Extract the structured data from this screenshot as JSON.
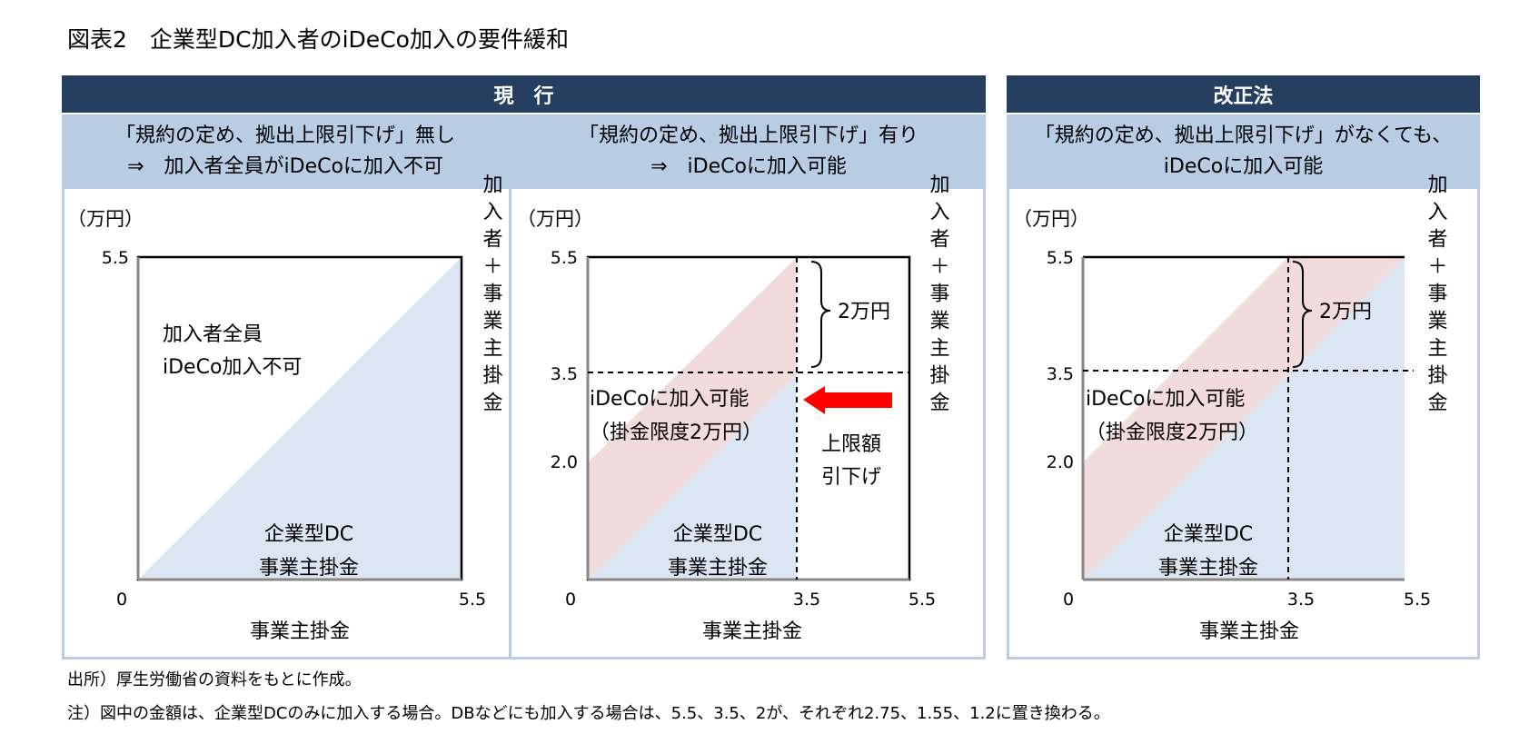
{
  "figure": {
    "title": "図表2　企業型DC加入者のiDeCo加入の要件緩和"
  },
  "headers": {
    "current": "現　行",
    "revised": "改正法"
  },
  "panels": [
    {
      "subtitle": [
        "「規約の定め、拠出上限引下げ」無し",
        "⇒　加入者全員がiDeCoに加入不可"
      ],
      "unit": "（万円）",
      "y_ticks": [
        "5.5"
      ],
      "x_ticks": [
        "0",
        "5.5"
      ],
      "x_label": "事業主掛金",
      "side_label": "加入者＋事業主掛金",
      "area_text": [
        "加入者全員",
        "iDeCo加入不可"
      ],
      "dc_text": [
        "企業型DC",
        "事業主掛金"
      ]
    },
    {
      "subtitle": [
        "「規約の定め、拠出上限引下げ」有り",
        "⇒　iDeCoに加入可能"
      ],
      "unit": "（万円）",
      "y_ticks": [
        "5.5",
        "3.5",
        "2.0"
      ],
      "x_ticks": [
        "0",
        "3.5",
        "5.5"
      ],
      "x_label": "事業主掛金",
      "side_label": "加入者＋事業主掛金",
      "ideco_text": [
        "iDeCoに加入可能",
        "（掛金限度2万円）"
      ],
      "brace_text": "2万円",
      "arrow_text": [
        "上限額",
        "引下げ"
      ],
      "dc_text": [
        "企業型DC",
        "事業主掛金"
      ]
    },
    {
      "subtitle": [
        "「規約の定め、拠出上限引下げ」がなくても、",
        "iDeCoに加入可能"
      ],
      "unit": "（万円）",
      "y_ticks": [
        "5.5",
        "3.5",
        "2.0"
      ],
      "x_ticks": [
        "0",
        "3.5",
        "5.5"
      ],
      "x_label": "事業主掛金",
      "side_label": "加入者＋事業主掛金",
      "ideco_text": [
        "iDeCoに加入可能",
        "（掛金限度2万円）"
      ],
      "brace_text": "2万円",
      "dc_text": [
        "企業型DC",
        "事業主掛金"
      ]
    }
  ],
  "notes": [
    "出所）厚生労働省の資料をもとに作成。",
    "注）図中の金額は、企業型DCのみに加入する場合。DBなどにも加入する場合は、5.5、3.5、2が、それぞれ2.75、1.55、1.2に置き換わる。"
  ],
  "colors": {
    "header_bg": "#243f60",
    "subheader_bg": "#b8cce4",
    "dc_area": "#dce6f2",
    "ideco_area": "#f2dcdb",
    "arrow": "#ff0000"
  }
}
